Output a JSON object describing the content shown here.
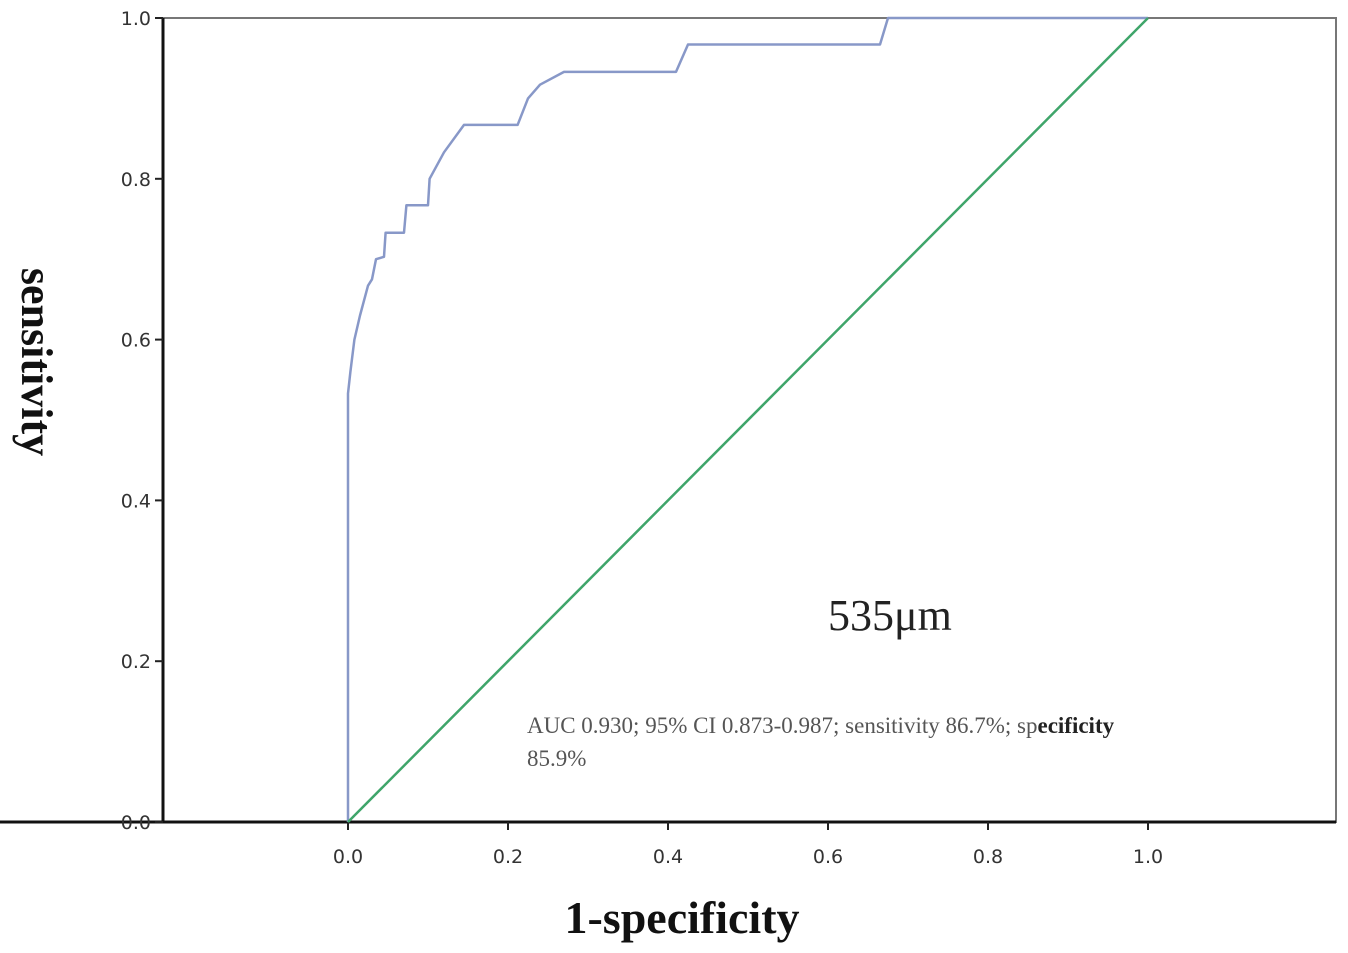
{
  "chart_data": {
    "type": "line",
    "xlabel": "1-specificity",
    "ylabel": "sensitivity",
    "xlim": [
      0.0,
      1.0
    ],
    "ylim": [
      0.0,
      1.0
    ],
    "x_ticks": [
      "0.0",
      "0.2",
      "0.4",
      "0.6",
      "0.8",
      "1.0"
    ],
    "y_ticks": [
      "0.0",
      "0.2",
      "0.4",
      "0.6",
      "0.8",
      "1.0"
    ],
    "grid": false,
    "legend": "none",
    "series": [
      {
        "color": "#8898c8",
        "x": [
          0.0,
          0.0,
          0.003,
          0.008,
          0.015,
          0.025,
          0.03,
          0.035,
          0.045,
          0.047,
          0.07,
          0.073,
          0.1,
          0.102,
          0.12,
          0.145,
          0.212,
          0.225,
          0.24,
          0.27,
          0.3,
          0.41,
          0.425,
          0.44,
          0.665,
          0.675,
          0.7,
          0.85,
          1.0
        ],
        "y": [
          0.0,
          0.533,
          0.56,
          0.6,
          0.63,
          0.667,
          0.675,
          0.7,
          0.703,
          0.733,
          0.733,
          0.767,
          0.767,
          0.8,
          0.833,
          0.867,
          0.867,
          0.9,
          0.917,
          0.933,
          0.933,
          0.933,
          0.967,
          0.967,
          0.967,
          1.0,
          1.0,
          1.0,
          1.0
        ]
      },
      {
        "color": "#3fa56a",
        "x": [
          0.0,
          1.0
        ],
        "y": [
          0.0,
          1.0
        ]
      }
    ],
    "annotations": {
      "threshold": "535μm",
      "stats_part1": "AUC 0.930; 95% CI 0.873-0.987; sensitivity 86.7%; sp",
      "stats_bold": "ecificity",
      "stats_line2": "85.9%"
    }
  }
}
